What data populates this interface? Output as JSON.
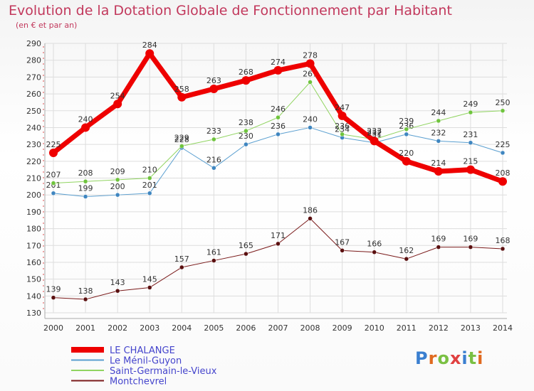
{
  "header": {
    "title": "Evolution de la Dotation Globale de Fonctionnement par Habitant",
    "subtitle": "(en € et par an)"
  },
  "logo": "Proxiti",
  "colors": {
    "title": "#c2385c",
    "grid": "#dddddd",
    "axis": "#aaaaaa"
  },
  "chart_data": {
    "type": "line",
    "x": [
      2000,
      2001,
      2002,
      2003,
      2004,
      2005,
      2006,
      2007,
      2008,
      2009,
      2010,
      2011,
      2012,
      2013,
      2014
    ],
    "ylim": [
      130,
      290
    ],
    "yticks": [
      130,
      140,
      150,
      160,
      170,
      180,
      190,
      200,
      210,
      220,
      230,
      240,
      250,
      260,
      270,
      280,
      290
    ],
    "grid": true,
    "legend_position": "bottom-left",
    "series": [
      {
        "name": "Montchevrel",
        "color": "#7a1a1a",
        "marker": "#5a0f0f",
        "width": 1,
        "values": [
          139,
          138,
          143,
          145,
          157,
          161,
          165,
          171,
          186,
          167,
          166,
          162,
          169,
          169,
          168
        ]
      },
      {
        "name": "Le Ménil-Guyon",
        "color": "#5a9fd0",
        "marker": "#3f86c0",
        "width": 1,
        "values": [
          201,
          199,
          200,
          201,
          228,
          216,
          230,
          236,
          240,
          234,
          231,
          236,
          232,
          231,
          225
        ]
      },
      {
        "name": "Saint-Germain-le-Vieux",
        "color": "#90d460",
        "marker": "#6fc43d",
        "width": 1,
        "values": [
          207,
          208,
          209,
          210,
          229,
          233,
          238,
          246,
          267,
          236,
          233,
          239,
          244,
          249,
          250
        ]
      },
      {
        "name": "LE CHALANGE",
        "color": "#ee0000",
        "marker": "#ee0000",
        "width": 7,
        "values": [
          225,
          240,
          254,
          284,
          258,
          263,
          268,
          274,
          278,
          247,
          232,
          220,
          214,
          215,
          208
        ]
      }
    ],
    "legend_order": [
      "LE CHALANGE",
      "Le Ménil-Guyon",
      "Saint-Germain-le-Vieux",
      "Montchevrel"
    ]
  }
}
